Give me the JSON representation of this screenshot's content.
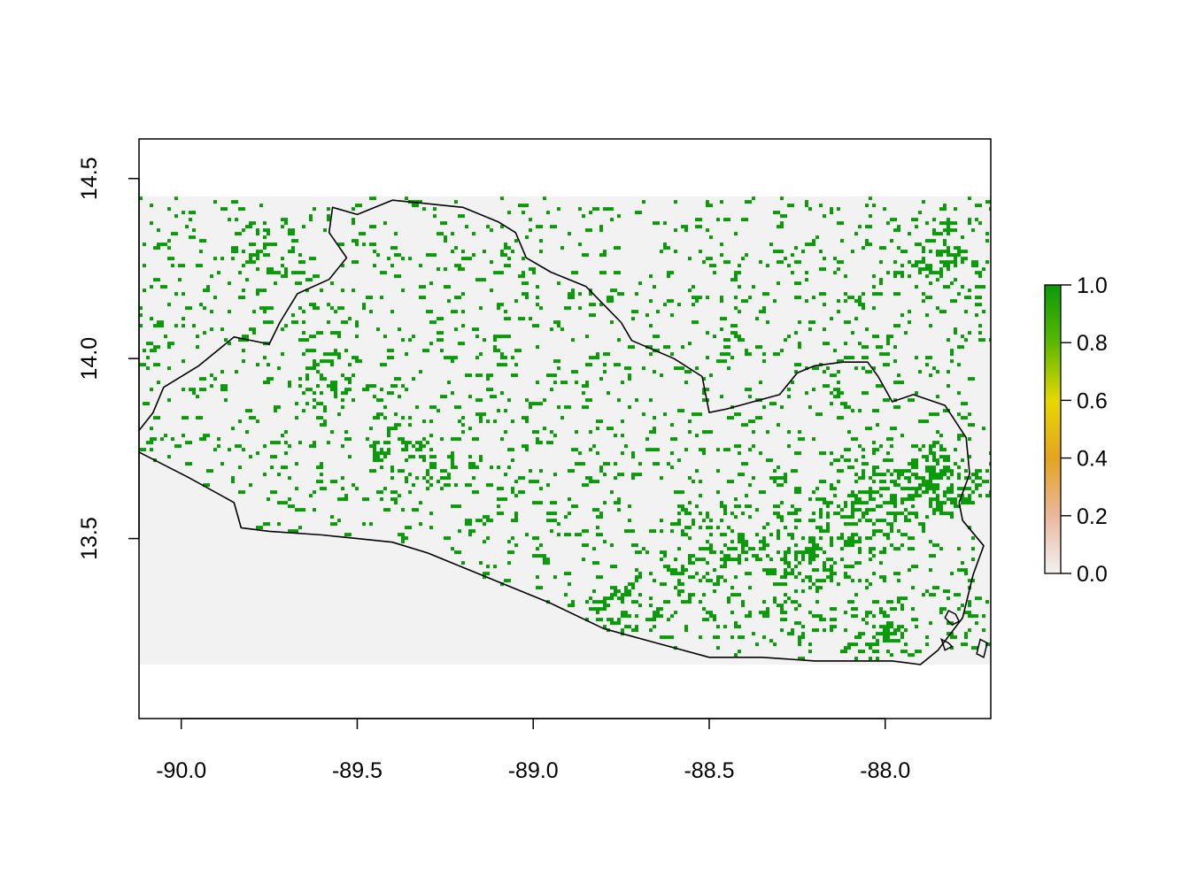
{
  "chart_data": {
    "type": "heatmap",
    "title": "",
    "xlabel": "",
    "ylabel": "",
    "xlim": [
      -90.12,
      -87.7
    ],
    "ylim": [
      13.0,
      14.61
    ],
    "x_ticks": [
      {
        "value": -90.0,
        "label": "-90.0"
      },
      {
        "value": -89.5,
        "label": "-89.5"
      },
      {
        "value": -89.0,
        "label": "-89.0"
      },
      {
        "value": -88.5,
        "label": "-88.5"
      },
      {
        "value": -88.0,
        "label": "-88.0"
      }
    ],
    "y_ticks": [
      {
        "value": 13.5,
        "label": "13.5"
      },
      {
        "value": 14.0,
        "label": "14.0"
      },
      {
        "value": 14.5,
        "label": "14.5"
      }
    ],
    "raster_extent": {
      "xmin": -90.12,
      "xmax": -87.7,
      "ymin": 13.15,
      "ymax": 14.45
    },
    "colors": {
      "background_raster": "#f2f2f2",
      "value_high": "#0a9a0a",
      "border": "#000000"
    },
    "legend": {
      "position": "right",
      "ticks": [
        {
          "value": 0.0,
          "label": "0.0"
        },
        {
          "value": 0.2,
          "label": "0.2"
        },
        {
          "value": 0.4,
          "label": "0.4"
        },
        {
          "value": 0.6,
          "label": "0.6"
        },
        {
          "value": 0.8,
          "label": "0.8"
        },
        {
          "value": 1.0,
          "label": "1.0"
        }
      ],
      "color_stops": [
        {
          "value": 0.0,
          "color": "#f2f2f2"
        },
        {
          "value": 0.2,
          "color": "#eab79c"
        },
        {
          "value": 0.4,
          "color": "#e4a420"
        },
        {
          "value": 0.6,
          "color": "#e6d800"
        },
        {
          "value": 0.8,
          "color": "#5bb800"
        },
        {
          "value": 1.0,
          "color": "#0a9a0a"
        }
      ]
    },
    "boundary": [
      [
        -90.12,
        13.74
      ],
      [
        -89.98,
        13.67
      ],
      [
        -89.85,
        13.6
      ],
      [
        -89.83,
        13.53
      ],
      [
        -89.75,
        13.52
      ],
      [
        -89.6,
        13.51
      ],
      [
        -89.5,
        13.5
      ],
      [
        -89.4,
        13.49
      ],
      [
        -89.3,
        13.46
      ],
      [
        -89.15,
        13.4
      ],
      [
        -88.95,
        13.32
      ],
      [
        -88.8,
        13.25
      ],
      [
        -88.65,
        13.21
      ],
      [
        -88.5,
        13.17
      ],
      [
        -88.35,
        13.17
      ],
      [
        -88.2,
        13.16
      ],
      [
        -88.1,
        13.16
      ],
      [
        -87.98,
        13.16
      ],
      [
        -87.9,
        13.15
      ],
      [
        -87.85,
        13.19
      ],
      [
        -87.78,
        13.28
      ],
      [
        -87.75,
        13.4
      ],
      [
        -87.72,
        13.48
      ],
      [
        -87.78,
        13.55
      ],
      [
        -87.79,
        13.6
      ],
      [
        -87.76,
        13.68
      ],
      [
        -87.77,
        13.78
      ],
      [
        -87.83,
        13.87
      ],
      [
        -87.92,
        13.9
      ],
      [
        -87.98,
        13.88
      ],
      [
        -88.02,
        13.95
      ],
      [
        -88.05,
        13.99
      ],
      [
        -88.12,
        13.99
      ],
      [
        -88.2,
        13.98
      ],
      [
        -88.25,
        13.96
      ],
      [
        -88.3,
        13.9
      ],
      [
        -88.45,
        13.86
      ],
      [
        -88.5,
        13.85
      ],
      [
        -88.52,
        13.95
      ],
      [
        -88.6,
        14.0
      ],
      [
        -88.72,
        14.05
      ],
      [
        -88.75,
        14.1
      ],
      [
        -88.8,
        14.15
      ],
      [
        -88.85,
        14.2
      ],
      [
        -88.95,
        14.24
      ],
      [
        -89.02,
        14.28
      ],
      [
        -89.05,
        14.35
      ],
      [
        -89.1,
        14.38
      ],
      [
        -89.2,
        14.42
      ],
      [
        -89.3,
        14.43
      ],
      [
        -89.4,
        14.44
      ],
      [
        -89.5,
        14.4
      ],
      [
        -89.57,
        14.42
      ],
      [
        -89.58,
        14.35
      ],
      [
        -89.53,
        14.28
      ],
      [
        -89.58,
        14.22
      ],
      [
        -89.67,
        14.18
      ],
      [
        -89.72,
        14.1
      ],
      [
        -89.75,
        14.04
      ],
      [
        -89.85,
        14.06
      ],
      [
        -89.95,
        13.98
      ],
      [
        -90.05,
        13.92
      ],
      [
        -90.08,
        13.85
      ],
      [
        -90.12,
        13.8
      ]
    ],
    "islands": [
      [
        [
          -87.82,
          13.3
        ],
        [
          -87.8,
          13.29
        ],
        [
          -87.79,
          13.27
        ],
        [
          -87.81,
          13.26
        ],
        [
          -87.83,
          13.28
        ]
      ],
      [
        [
          -87.84,
          13.22
        ],
        [
          -87.82,
          13.21
        ],
        [
          -87.81,
          13.2
        ],
        [
          -87.83,
          13.19
        ]
      ],
      [
        [
          -87.73,
          13.22
        ],
        [
          -87.71,
          13.21
        ],
        [
          -87.72,
          13.17
        ],
        [
          -87.74,
          13.18
        ]
      ]
    ],
    "hotspots": [
      {
        "lon": -87.86,
        "lat": 13.67,
        "r": 0.13,
        "density": 0.55
      },
      {
        "lon": -88.05,
        "lat": 13.62,
        "r": 0.2,
        "density": 0.3
      },
      {
        "lon": -88.25,
        "lat": 13.45,
        "r": 0.25,
        "density": 0.22
      },
      {
        "lon": -88.75,
        "lat": 13.32,
        "r": 0.12,
        "density": 0.3
      },
      {
        "lon": -89.28,
        "lat": 13.69,
        "r": 0.09,
        "density": 0.35
      },
      {
        "lon": -89.4,
        "lat": 13.75,
        "r": 0.12,
        "density": 0.22
      },
      {
        "lon": -89.6,
        "lat": 13.95,
        "r": 0.12,
        "density": 0.22
      },
      {
        "lon": -89.75,
        "lat": 14.3,
        "r": 0.12,
        "density": 0.22
      },
      {
        "lon": -87.85,
        "lat": 14.28,
        "r": 0.15,
        "density": 0.22
      },
      {
        "lon": -88.55,
        "lat": 13.45,
        "r": 0.2,
        "density": 0.15
      },
      {
        "lon": -88.0,
        "lat": 13.25,
        "r": 0.15,
        "density": 0.18
      }
    ],
    "background_density": 0.06
  }
}
